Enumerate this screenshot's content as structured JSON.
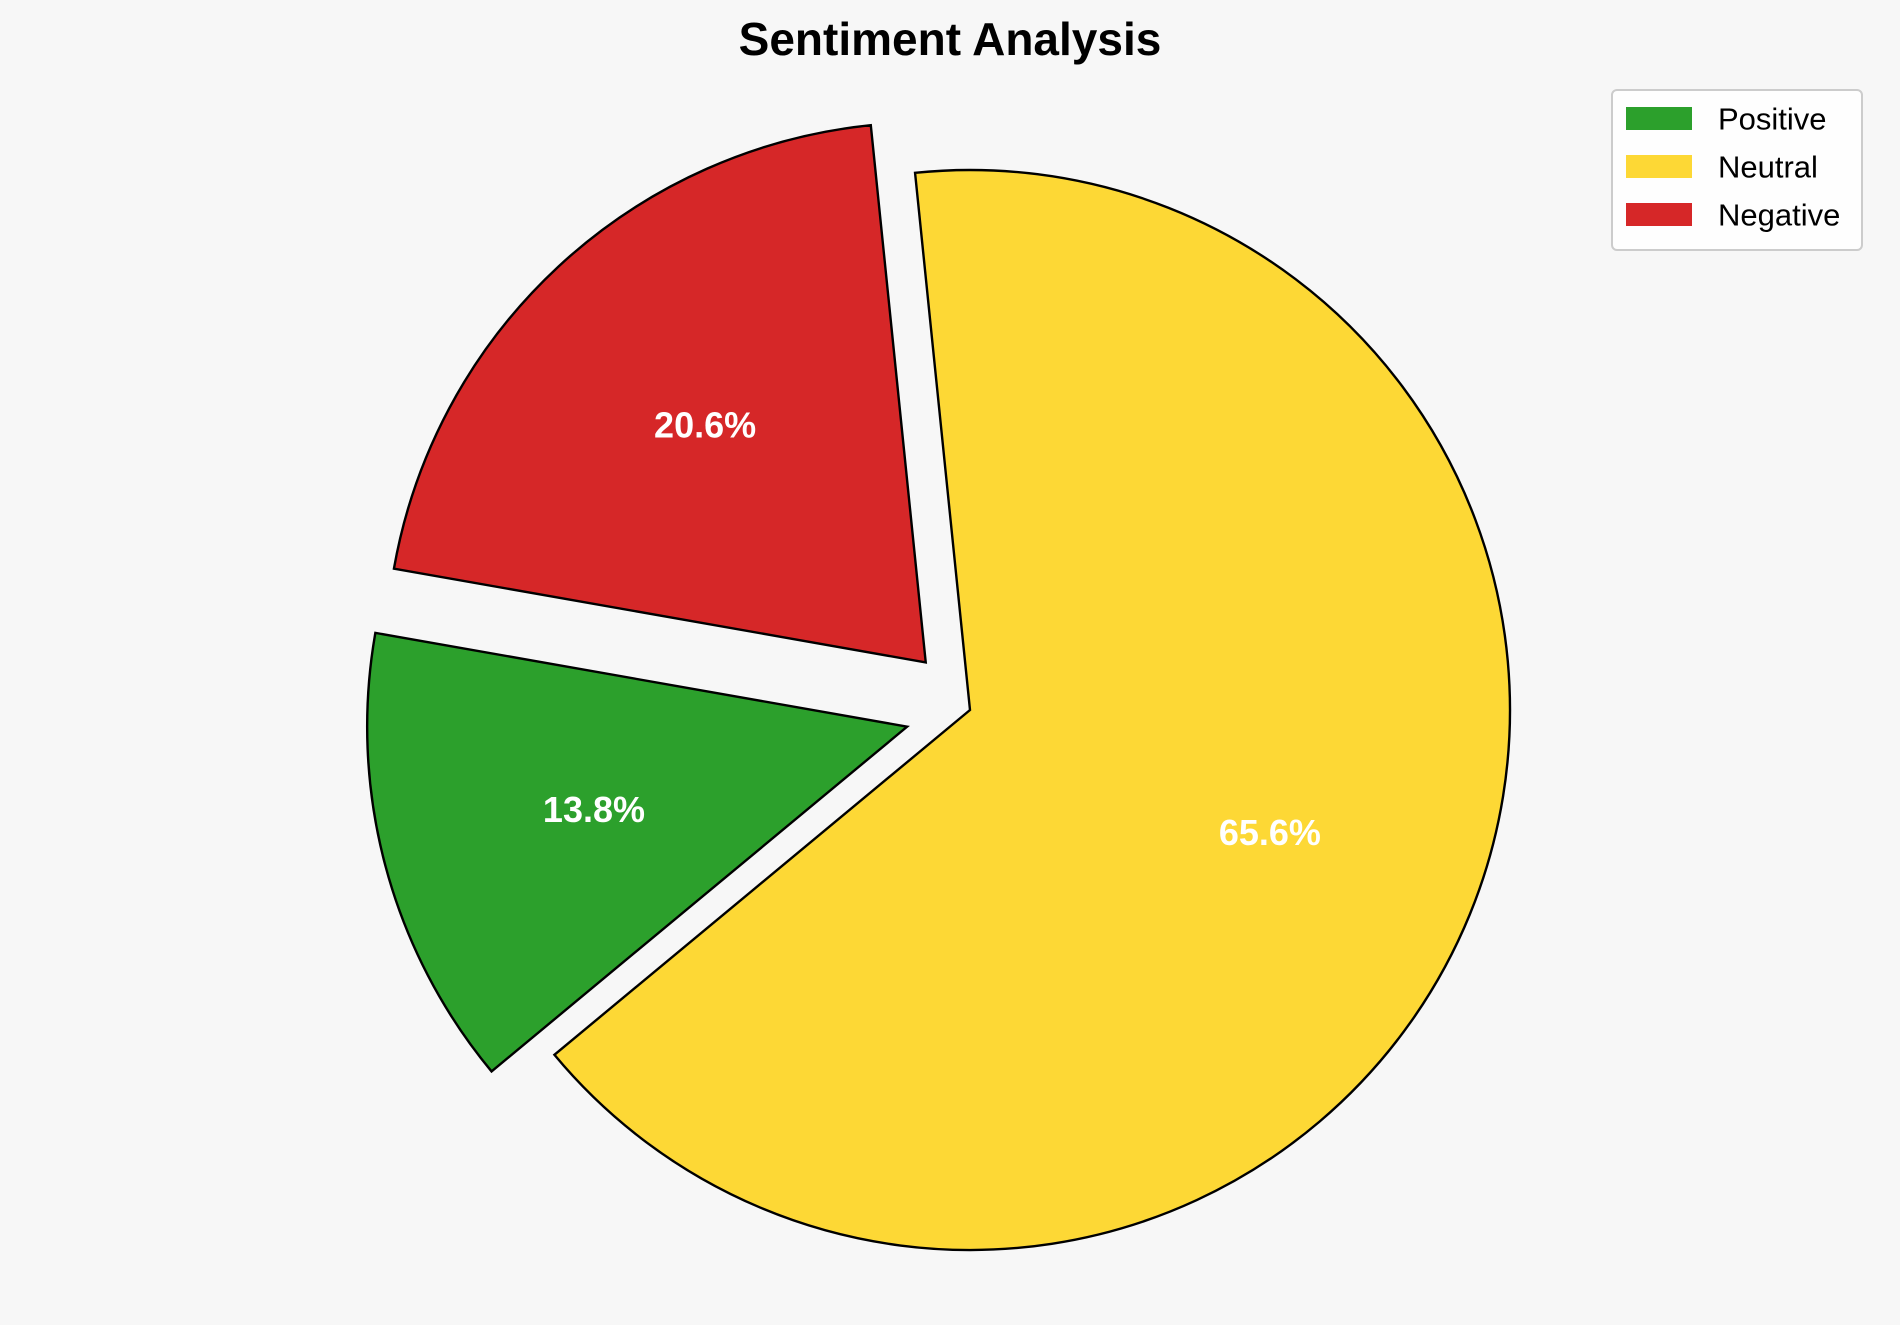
{
  "chart_data": {
    "type": "pie",
    "title": "Sentiment Analysis",
    "labels": [
      "Positive",
      "Neutral",
      "Negative"
    ],
    "values": [
      13.8,
      65.6,
      20.6
    ],
    "value_labels": [
      "13.8%",
      "65.6%",
      "20.6%"
    ],
    "colors": [
      "#2ca02c",
      "#fdd835",
      "#d62728"
    ],
    "exploded": [
      true,
      false,
      true
    ],
    "start_angle_deg": 170,
    "direction": "counterclockwise",
    "legend": {
      "position": "top-right"
    }
  }
}
